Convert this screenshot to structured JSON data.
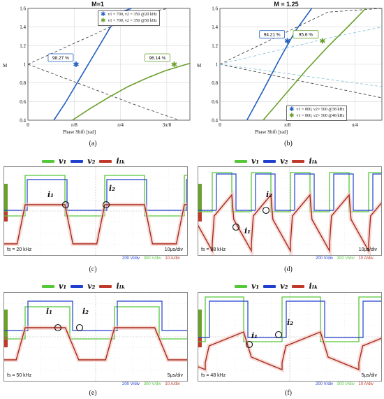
{
  "chart_data": [
    {
      "type": "line",
      "title": "M=1",
      "subcaption": "(a)",
      "xlabel": "Phase Shift [rad]",
      "ylabel": "M",
      "x_ticks": [
        "0",
        "π/8",
        "π/4",
        "3π/8"
      ],
      "y_ticks": [
        "0.4",
        "0.6",
        "0.8",
        "1",
        "1.2",
        "1.4",
        "1.6"
      ],
      "xlim_fraction_of_pi": [
        0,
        0.4375
      ],
      "ylim": [
        0.4,
        1.6
      ],
      "grid": true,
      "legend_placement": "top-right",
      "series": [
        {
          "name": "v1 = 700, v2 = 350 @20 kHz",
          "color": "#1f5fbf",
          "x_fraction_of_pi": [
            0.07,
            0.1,
            0.13,
            0.16,
            0.19,
            0.22,
            0.25,
            0.28
          ],
          "y": [
            0.4,
            0.58,
            0.78,
            0.98,
            1.18,
            1.38,
            1.56,
            1.6
          ]
        },
        {
          "name": "v1 = 700, v2 = 350 @50 kHz",
          "color": "#6aa02b",
          "x_fraction_of_pi": [
            0.12,
            0.17,
            0.22,
            0.27,
            0.32,
            0.37,
            0.42,
            0.4375
          ],
          "y": [
            0.4,
            0.53,
            0.65,
            0.76,
            0.85,
            0.93,
            0.99,
            1.01
          ]
        }
      ],
      "dashed_curves": [
        {
          "color": "#333333",
          "x_fraction_of_pi": [
            0.0,
            0.1,
            0.2,
            0.3,
            0.38
          ],
          "y": [
            1.0,
            1.18,
            1.36,
            1.54,
            1.6
          ]
        },
        {
          "color": "#333333",
          "x_fraction_of_pi": [
            0.0,
            0.1,
            0.2,
            0.3,
            0.4375
          ],
          "y": [
            1.0,
            0.85,
            0.7,
            0.55,
            0.36
          ]
        }
      ],
      "markers": [
        {
          "label": "98.27 %",
          "x_fraction_of_pi": 0.13,
          "y": 1.0,
          "color": "#1f5fbf"
        },
        {
          "label": "96.14 %",
          "x_fraction_of_pi": 0.395,
          "y": 1.0,
          "color": "#6aa02b"
        }
      ]
    },
    {
      "type": "line",
      "title": "M = 1.25",
      "subcaption": "(b)",
      "xlabel": "Phase Shift [rad]",
      "ylabel": "M",
      "x_ticks": [
        "0",
        "π/8",
        "π/4"
      ],
      "y_ticks": [
        "0.4",
        "0.6",
        "0.8",
        "1",
        "1.2",
        "1.4",
        "1.6"
      ],
      "xlim_fraction_of_pi": [
        0,
        0.3
      ],
      "ylim": [
        0.4,
        1.6
      ],
      "grid": true,
      "legend_placement": "bottom-right",
      "series": [
        {
          "name": "v1 = 800, v2= 500 @38 kHz",
          "color": "#1f5fbf",
          "x_fraction_of_pi": [
            0.05,
            0.08,
            0.11,
            0.14,
            0.17
          ],
          "y": [
            0.4,
            0.72,
            1.05,
            1.36,
            1.6
          ]
        },
        {
          "name": "v1 = 800, v2= 500 @48 kHz",
          "color": "#6aa02b",
          "x_fraction_of_pi": [
            0.08,
            0.12,
            0.16,
            0.2,
            0.24,
            0.27
          ],
          "y": [
            0.4,
            0.67,
            0.94,
            1.19,
            1.42,
            1.6
          ]
        }
      ],
      "dashed_curves": [
        {
          "color": "#333333",
          "x_fraction_of_pi": [
            0.0,
            0.1,
            0.2,
            0.3
          ],
          "y": [
            1.0,
            1.28,
            1.56,
            1.6
          ]
        },
        {
          "color": "#333333",
          "x_fraction_of_pi": [
            0.0,
            0.1,
            0.2,
            0.3
          ],
          "y": [
            1.0,
            0.88,
            0.76,
            0.64
          ]
        },
        {
          "color": "#7fbcd9",
          "x_fraction_of_pi": [
            0.0,
            0.1,
            0.2,
            0.3
          ],
          "y": [
            1.0,
            1.14,
            1.28,
            1.4
          ]
        },
        {
          "color": "#7fbcd9",
          "x_fraction_of_pi": [
            0.0,
            0.1,
            0.2,
            0.3
          ],
          "y": [
            1.0,
            0.92,
            0.84,
            0.76
          ]
        }
      ],
      "markers": [
        {
          "label": "94.21 %",
          "x_fraction_of_pi": 0.125,
          "y": 1.25,
          "color": "#1f5fbf"
        },
        {
          "label": "95.6 %",
          "x_fraction_of_pi": 0.19,
          "y": 1.25,
          "color": "#6aa02b"
        }
      ]
    }
  ],
  "oscilloscope": {
    "legend": {
      "v1": "v₁",
      "v2": "v₂",
      "iLk": "iₗₖ"
    },
    "legend_colors": {
      "v1": "#55c83a",
      "v2": "#1f3fcf",
      "iLk": "#c0392b"
    },
    "scale_labels": {
      "v2": "200 V/div",
      "v1": "300 V/div",
      "iLk": "10 A/div"
    },
    "panels": [
      {
        "subcaption": "(c)",
        "fs": "fs = 20 kHz",
        "time": "10μs/div"
      },
      {
        "subcaption": "(d)",
        "fs": "fs = 38 kHz",
        "time": "10μs/div"
      },
      {
        "subcaption": "(e)",
        "fs": "fs = 50 kHz",
        "time": "5μs/div"
      },
      {
        "subcaption": "(f)",
        "fs": "fs = 48 kHz",
        "time": "5μs/div"
      }
    ],
    "current_labels": {
      "i1": "i₁",
      "i2": "i₂"
    }
  }
}
